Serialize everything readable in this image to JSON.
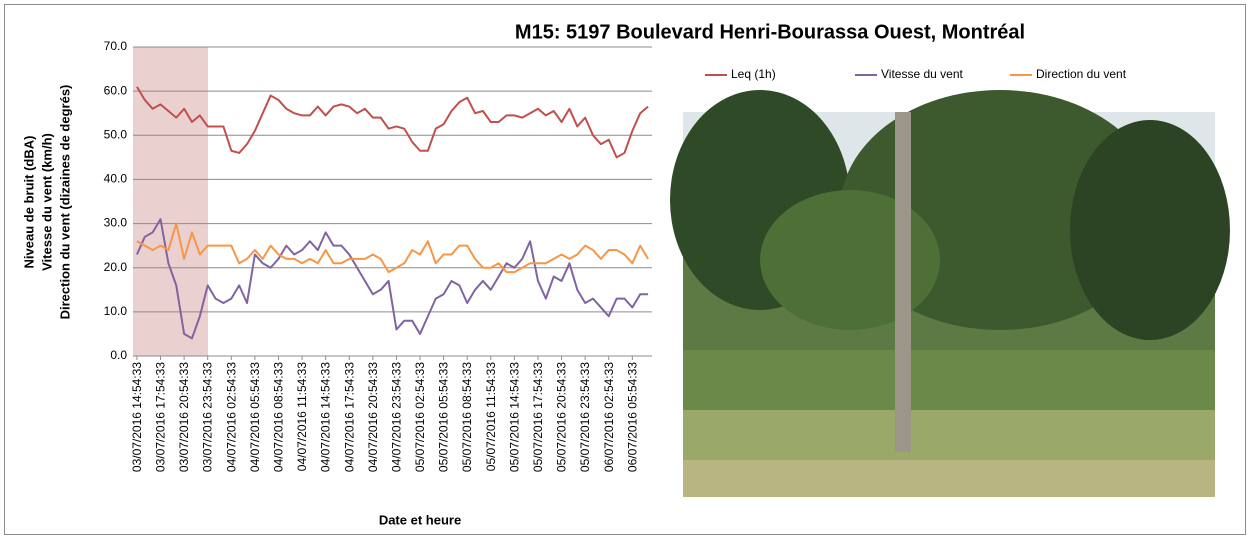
{
  "chart_data": {
    "type": "line",
    "title": "M15: 5197 Boulevard Henri-Bourassa Ouest, Montréal",
    "x_label": "Date et heure",
    "y_label": [
      "Niveau de bruit (dBA)",
      "Vitesse du vent (km/h)",
      "Direction du vent (dizaines de degrés)"
    ],
    "categories": [
      "03/07/2016 14:54:33",
      null,
      null,
      "03/07/2016 17:54:33",
      null,
      null,
      "03/07/2016 20:54:33",
      null,
      null,
      "03/07/2016 23:54:33",
      null,
      null,
      "04/07/2016 02:54:33",
      null,
      null,
      "04/07/2016 05:54:33",
      null,
      null,
      "04/07/2016 08:54:33",
      null,
      null,
      "04/07/2016 11:54:33",
      null,
      null,
      "04/07/2016 14:54:33",
      null,
      null,
      "04/07/2016 17:54:33",
      null,
      null,
      "04/07/2016 20:54:33",
      null,
      null,
      "04/07/2016 23:54:33",
      null,
      null,
      "05/07/2016 02:54:33",
      null,
      null,
      "05/07/2016 05:54:33",
      null,
      null,
      "05/07/2016 08:54:33",
      null,
      null,
      "05/07/2016 11:54:33",
      null,
      null,
      "05/07/2016 14:54:33",
      null,
      null,
      "05/07/2016 17:54:33",
      null,
      null,
      "05/07/2016 20:54:33",
      null,
      null,
      "05/07/2016 23:54:33",
      null,
      null,
      "06/07/2016 02:54:33",
      null,
      null,
      "06/07/2016 05:54:33",
      null,
      null
    ],
    "series": [
      {
        "name": "Leq (1h)",
        "color": "#c0504d",
        "values": [
          61,
          58,
          56,
          57,
          55.5,
          54,
          56,
          53,
          54.5,
          52,
          52,
          52,
          46.5,
          46,
          48,
          51,
          55,
          59,
          58,
          56,
          55,
          54.5,
          54.5,
          56.5,
          54.5,
          56.5,
          57,
          56.5,
          55,
          56,
          54,
          54,
          51.5,
          52,
          51.5,
          48.5,
          46.5,
          46.5,
          51.5,
          52.5,
          55.5,
          57.5,
          58.5,
          55,
          55.5,
          53,
          53,
          54.5,
          54.5,
          54,
          55,
          56,
          54.5,
          55.5,
          53,
          56,
          52,
          54,
          50,
          48,
          49,
          45,
          46,
          51,
          55,
          56.5
        ]
      },
      {
        "name": "Vitesse du vent",
        "color": "#8064a2",
        "values": [
          23,
          27,
          28,
          31,
          21,
          16,
          5,
          4,
          9,
          16,
          13,
          12,
          13,
          16,
          12,
          23,
          21,
          20,
          22,
          25,
          23,
          24,
          26,
          24,
          28,
          25,
          25,
          23,
          20,
          17,
          14,
          15,
          17,
          6,
          8,
          8,
          5,
          9,
          13,
          14,
          17,
          16,
          12,
          15,
          17,
          15,
          18,
          21,
          20,
          22,
          26,
          17,
          13,
          18,
          17,
          21,
          15,
          12,
          13,
          11,
          9,
          13,
          13,
          11,
          14,
          14
        ]
      },
      {
        "name": "Direction du vent",
        "color": "#f79646",
        "values": [
          26,
          25,
          24,
          25,
          24,
          30,
          22,
          28,
          23,
          25,
          25,
          25,
          25,
          21,
          22,
          24,
          22,
          25,
          23,
          22,
          22,
          21,
          22,
          21,
          24,
          21,
          21,
          22,
          22,
          22,
          23,
          22,
          19,
          20,
          21,
          24,
          23,
          26,
          21,
          23,
          23,
          25,
          25,
          22,
          20,
          20,
          21,
          19,
          19,
          20,
          21,
          21,
          21,
          22,
          23,
          22,
          23,
          25,
          24,
          22,
          24,
          24,
          23,
          21,
          25,
          22
        ]
      }
    ],
    "ylim": [
      0,
      70
    ],
    "yticks": [
      {
        "value": 0,
        "label": "0.0"
      },
      {
        "value": 10,
        "label": "10.0"
      },
      {
        "value": 20,
        "label": "20.0"
      },
      {
        "value": 30,
        "label": "30.0"
      },
      {
        "value": 40,
        "label": "40.0"
      },
      {
        "value": 50,
        "label": "50.0"
      },
      {
        "value": 60,
        "label": "60.0"
      },
      {
        "value": 70,
        "label": "70.0"
      }
    ],
    "grid": true
  }
}
